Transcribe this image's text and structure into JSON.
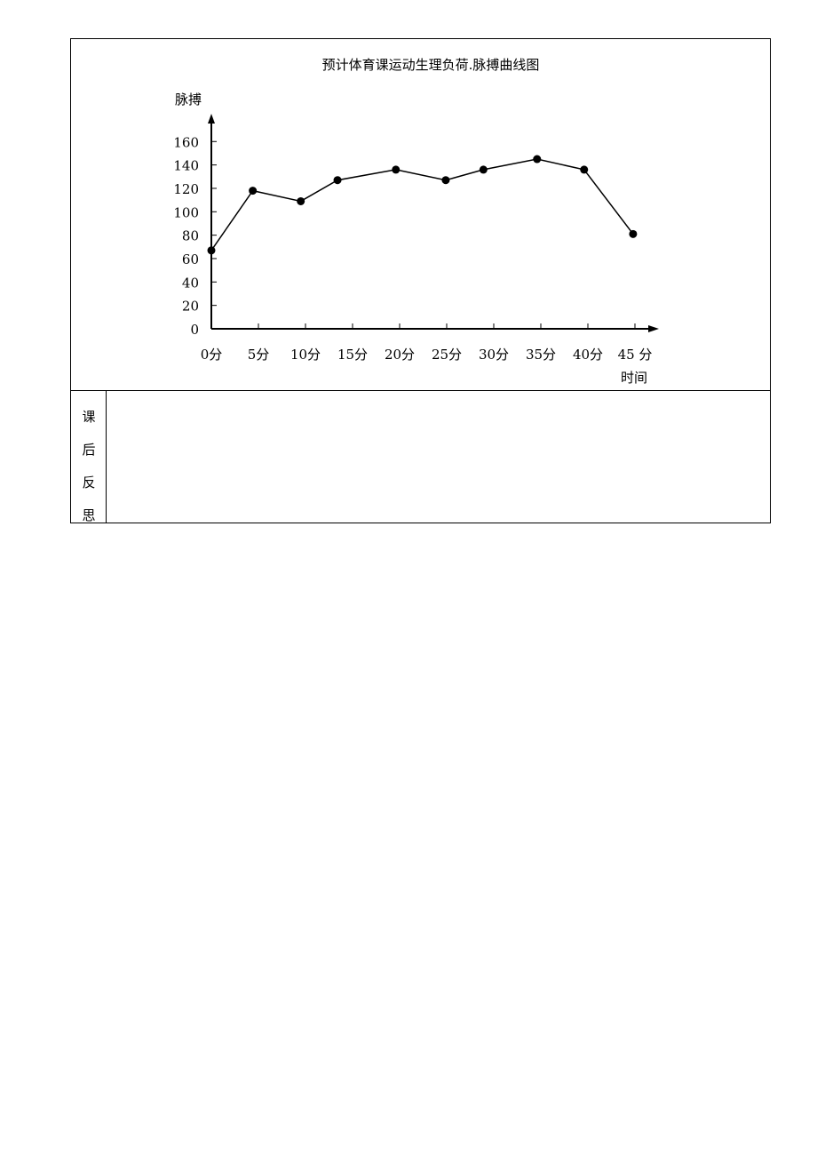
{
  "chart_data": {
    "type": "line",
    "title": "预计体育课运动生理负荷.脉搏曲线图",
    "ylabel": "脉搏",
    "xlabel": "时间",
    "ylim": [
      0,
      180
    ],
    "yticks": [
      0,
      20,
      40,
      60,
      80,
      100,
      120,
      140,
      160
    ],
    "categories": [
      "0分",
      "5分",
      "10分",
      "15分",
      "20分",
      "25分",
      "30分",
      "35分",
      "40分",
      "45 分"
    ],
    "points": [
      {
        "x": 0,
        "y": 67
      },
      {
        "x": 4.4,
        "y": 118
      },
      {
        "x": 9.5,
        "y": 109
      },
      {
        "x": 13.4,
        "y": 127
      },
      {
        "x": 19.6,
        "y": 136
      },
      {
        "x": 24.9,
        "y": 127
      },
      {
        "x": 28.9,
        "y": 136
      },
      {
        "x": 34.6,
        "y": 145
      },
      {
        "x": 39.6,
        "y": 136
      },
      {
        "x": 44.8,
        "y": 81
      }
    ],
    "marker": "filled-circle",
    "line_color": "#000000",
    "grid": false,
    "legend": "none"
  },
  "reflection": {
    "chars": [
      "课",
      "后",
      "反",
      "思"
    ],
    "content": ""
  }
}
